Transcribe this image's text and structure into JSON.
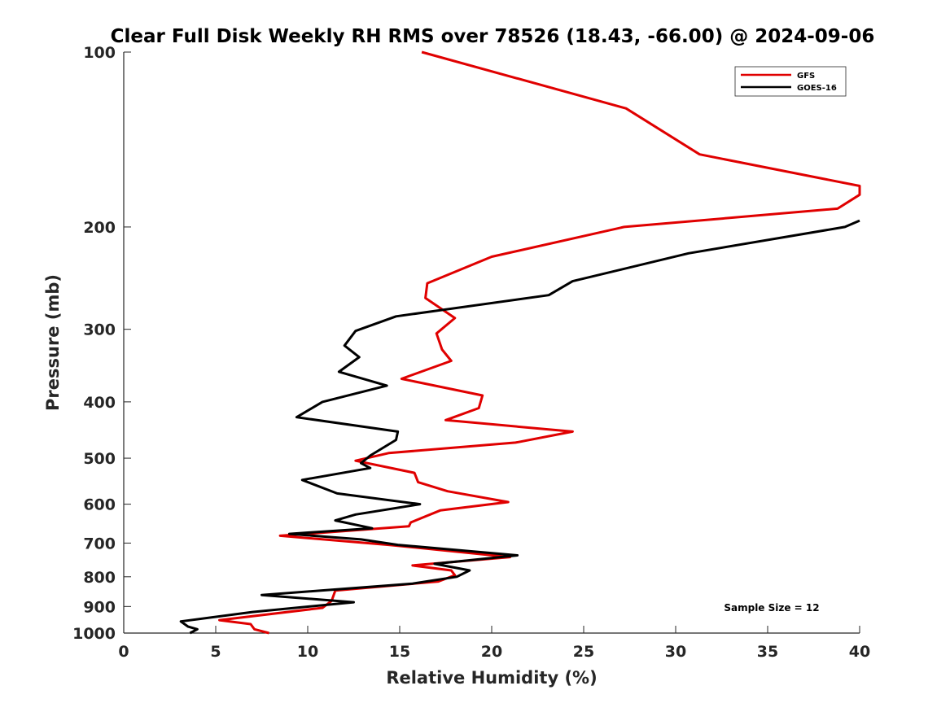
{
  "chart_data": {
    "type": "line",
    "title": "Clear Full Disk Weekly RH RMS over 78526 (18.43, -66.00) @ 2024-09-06",
    "xlabel": "Relative Humidity (%)",
    "ylabel": "Pressure (mb)",
    "xlim": [
      0,
      40
    ],
    "ylim": [
      100,
      1000
    ],
    "yscale": "log",
    "y_reversed": true,
    "xticks": [
      0,
      5,
      10,
      15,
      20,
      25,
      30,
      35,
      40
    ],
    "yticks": [
      100,
      200,
      300,
      400,
      500,
      600,
      700,
      800,
      900,
      1000
    ],
    "grid": false,
    "legend_position": "top-right",
    "annotation": "Sample Size = 12",
    "series": [
      {
        "name": "GFS",
        "color": "#e00000",
        "points": [
          [
            16.2,
            100
          ],
          [
            27.3,
            125
          ],
          [
            31.3,
            150
          ],
          [
            40.0,
            170
          ],
          [
            40.0,
            176
          ],
          [
            38.8,
            186
          ],
          [
            27.2,
            200
          ],
          [
            20.0,
            225
          ],
          [
            16.5,
            250
          ],
          [
            16.4,
            265
          ],
          [
            18.0,
            287
          ],
          [
            17.0,
            305
          ],
          [
            17.3,
            325
          ],
          [
            17.8,
            340
          ],
          [
            15.1,
            365
          ],
          [
            19.5,
            390
          ],
          [
            19.3,
            410
          ],
          [
            17.5,
            430
          ],
          [
            24.4,
            450
          ],
          [
            21.3,
            470
          ],
          [
            14.4,
            490
          ],
          [
            12.6,
            505
          ],
          [
            15.8,
            530
          ],
          [
            16.0,
            550
          ],
          [
            17.6,
            570
          ],
          [
            20.9,
            595
          ],
          [
            17.2,
            615
          ],
          [
            15.6,
            645
          ],
          [
            15.5,
            655
          ],
          [
            8.5,
            680
          ],
          [
            14.4,
            705
          ],
          [
            21.0,
            740
          ],
          [
            15.7,
            765
          ],
          [
            17.8,
            780
          ],
          [
            18.0,
            795
          ],
          [
            17.1,
            815
          ],
          [
            11.5,
            845
          ],
          [
            11.3,
            880
          ],
          [
            10.8,
            905
          ],
          [
            5.2,
            950
          ],
          [
            6.9,
            965
          ],
          [
            7.1,
            985
          ],
          [
            7.9,
            1000
          ]
        ]
      },
      {
        "name": "GOES-16",
        "color": "#000000",
        "points": [
          [
            40.0,
            195
          ],
          [
            39.2,
            200
          ],
          [
            30.7,
            222
          ],
          [
            24.4,
            248
          ],
          [
            23.1,
            262
          ],
          [
            14.8,
            285
          ],
          [
            12.6,
            302
          ],
          [
            12.0,
            320
          ],
          [
            12.8,
            335
          ],
          [
            11.7,
            355
          ],
          [
            14.3,
            375
          ],
          [
            10.8,
            400
          ],
          [
            9.4,
            425
          ],
          [
            14.9,
            450
          ],
          [
            14.8,
            465
          ],
          [
            13.4,
            495
          ],
          [
            12.9,
            510
          ],
          [
            13.4,
            520
          ],
          [
            9.7,
            545
          ],
          [
            11.6,
            575
          ],
          [
            16.1,
            600
          ],
          [
            12.6,
            625
          ],
          [
            11.5,
            640
          ],
          [
            13.5,
            660
          ],
          [
            9.0,
            675
          ],
          [
            12.9,
            690
          ],
          [
            14.9,
            705
          ],
          [
            21.4,
            735
          ],
          [
            16.9,
            760
          ],
          [
            18.8,
            780
          ],
          [
            18.1,
            800
          ],
          [
            15.7,
            822
          ],
          [
            7.5,
            860
          ],
          [
            12.5,
            885
          ],
          [
            7.0,
            920
          ],
          [
            3.1,
            955
          ],
          [
            3.5,
            975
          ],
          [
            4.0,
            985
          ],
          [
            3.6,
            1000
          ]
        ]
      }
    ]
  }
}
